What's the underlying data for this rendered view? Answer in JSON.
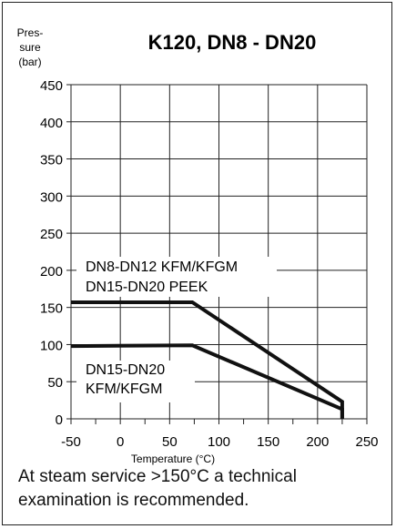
{
  "chart_data": {
    "type": "line",
    "title": "K120, DN8 - DN20",
    "ylabel": [
      "Pres-",
      "sure",
      "(bar)"
    ],
    "xlabel": "Temperature (°C)",
    "xlim": [
      -50,
      250
    ],
    "ylim": [
      0,
      450
    ],
    "xticks": [
      -50,
      0,
      50,
      100,
      150,
      200,
      250
    ],
    "yticks": [
      0,
      50,
      100,
      150,
      200,
      250,
      300,
      350,
      400,
      450
    ],
    "xtick_labels": [
      "-50",
      "0",
      "50",
      "100",
      "150",
      "200",
      "250"
    ],
    "ytick_labels": [
      "0",
      "50",
      "100",
      "150",
      "200",
      "250",
      "300",
      "350",
      "400",
      "450"
    ],
    "grid": true,
    "series": [
      {
        "label_lines": [
          "DN8-DN12 KFM/KFGM",
          "DN15-DN20 PEEK"
        ],
        "points": [
          [
            -50,
            157
          ],
          [
            73,
            157
          ],
          [
            225,
            23
          ],
          [
            225,
            0
          ]
        ]
      },
      {
        "label_lines": [
          "DN15-DN20",
          "KFM/KFGM"
        ],
        "points": [
          [
            -50,
            98
          ],
          [
            73,
            99
          ],
          [
            225,
            13
          ],
          [
            225,
            0
          ]
        ]
      }
    ]
  },
  "note": {
    "text": "At steam service >150°C a technical examination is recommended."
  }
}
